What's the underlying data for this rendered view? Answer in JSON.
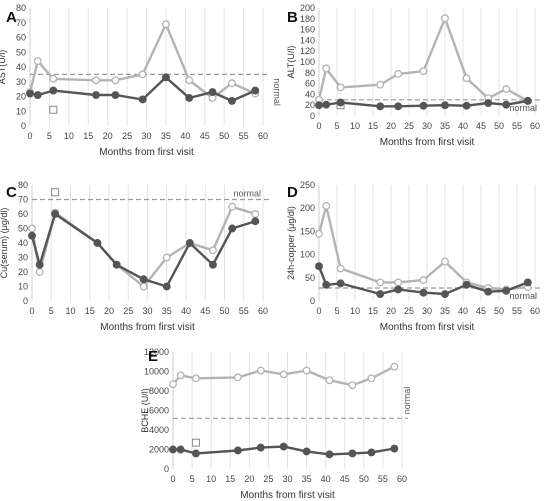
{
  "chart_data": [
    {
      "id": "A",
      "type": "line",
      "panel_label": "A",
      "xlabel": "Months from first visit",
      "ylabel": "AST(U/l)",
      "xlim": [
        0,
        60
      ],
      "ylim": [
        0,
        80
      ],
      "x_ticks": [
        0,
        5,
        10,
        15,
        20,
        25,
        30,
        35,
        40,
        45,
        50,
        55,
        60
      ],
      "y_ticks": [
        0,
        10,
        20,
        30,
        40,
        50,
        60,
        70,
        80
      ],
      "grid": "vertical",
      "reference_line": {
        "label": "normal",
        "y": 35
      },
      "square_marker": {
        "x": 6,
        "y": 11
      },
      "series": [
        {
          "style": "open-light",
          "color": "#b3b3b3",
          "x": [
            0,
            2,
            6,
            17,
            22,
            29,
            35,
            41,
            47,
            52,
            58
          ],
          "y": [
            23,
            44,
            32,
            31,
            31,
            35,
            69,
            31,
            19,
            29,
            22
          ]
        },
        {
          "style": "filled-dark",
          "color": "#555555",
          "x": [
            0,
            2,
            6,
            17,
            22,
            29,
            35,
            41,
            47,
            52,
            58
          ],
          "y": [
            22,
            21,
            24,
            21,
            21,
            18,
            33,
            19,
            23,
            17,
            24
          ]
        }
      ]
    },
    {
      "id": "B",
      "type": "line",
      "panel_label": "B",
      "xlabel": "Months from first visit",
      "ylabel": "ALT(U/l)",
      "xlim": [
        0,
        60
      ],
      "ylim": [
        0,
        200
      ],
      "x_ticks": [
        0,
        5,
        10,
        15,
        20,
        25,
        30,
        35,
        40,
        45,
        50,
        55,
        60
      ],
      "y_ticks": [
        0,
        20,
        40,
        60,
        80,
        100,
        120,
        140,
        160,
        180,
        200
      ],
      "grid": "vertical",
      "reference_line": {
        "label": "normal",
        "y": 30
      },
      "square_marker": {
        "x": 6,
        "y": 20
      },
      "series": [
        {
          "style": "open-light",
          "color": "#b3b3b3",
          "x": [
            0,
            2,
            6,
            17,
            22,
            29,
            35,
            41,
            47,
            52,
            58
          ],
          "y": [
            30,
            88,
            53,
            58,
            78,
            83,
            181,
            70,
            33,
            50,
            28
          ]
        },
        {
          "style": "filled-dark",
          "color": "#555555",
          "x": [
            0,
            2,
            6,
            17,
            22,
            29,
            35,
            41,
            47,
            52,
            58
          ],
          "y": [
            20,
            21,
            25,
            18,
            18,
            19,
            20,
            19,
            24,
            21,
            28
          ]
        }
      ]
    },
    {
      "id": "C",
      "type": "line",
      "panel_label": "C",
      "xlabel": "Months from first visit",
      "ylabel": "Cu(serum) (μg/dl)",
      "xlim": [
        0,
        60
      ],
      "ylim": [
        0,
        80
      ],
      "x_ticks": [
        0,
        5,
        10,
        15,
        20,
        25,
        30,
        35,
        40,
        45,
        50,
        55,
        60
      ],
      "y_ticks": [
        0,
        10,
        20,
        30,
        40,
        50,
        60,
        70,
        80
      ],
      "grid": "vertical",
      "reference_line": {
        "label": "normal",
        "y": 70
      },
      "square_marker": {
        "x": 6,
        "y": 75
      },
      "series": [
        {
          "style": "open-light",
          "color": "#b3b3b3",
          "x": [
            0,
            2,
            6,
            17,
            22,
            29,
            35,
            41,
            47,
            52,
            58
          ],
          "y": [
            50,
            20,
            61,
            40,
            25,
            10,
            30,
            40,
            35,
            65,
            60
          ]
        },
        {
          "style": "filled-dark",
          "color": "#555555",
          "x": [
            0,
            2,
            6,
            17,
            22,
            29,
            35,
            41,
            47,
            52,
            58
          ],
          "y": [
            45,
            25,
            60,
            40,
            25,
            15,
            10,
            40,
            25,
            50,
            55
          ]
        }
      ]
    },
    {
      "id": "D",
      "type": "line",
      "panel_label": "D",
      "xlabel": "Months from first visit",
      "ylabel": "24h-copper (μg/dl)",
      "xlim": [
        0,
        60
      ],
      "ylim": [
        0,
        250
      ],
      "x_ticks": [
        0,
        5,
        10,
        15,
        20,
        25,
        30,
        35,
        40,
        45,
        50,
        55,
        60
      ],
      "y_ticks": [
        0,
        50,
        100,
        150,
        200,
        250
      ],
      "grid": "vertical",
      "reference_line": {
        "label": "normal",
        "y": 28
      },
      "series": [
        {
          "style": "open-light",
          "color": "#b3b3b3",
          "x": [
            0,
            2,
            6,
            17,
            22,
            29,
            35,
            41,
            47,
            52,
            58
          ],
          "y": [
            145,
            205,
            70,
            40,
            40,
            45,
            85,
            40,
            28,
            25,
            30
          ]
        },
        {
          "style": "filled-dark",
          "color": "#555555",
          "x": [
            0,
            2,
            6,
            17,
            22,
            29,
            35,
            41,
            47,
            52,
            58
          ],
          "y": [
            75,
            35,
            38,
            15,
            25,
            18,
            15,
            35,
            20,
            22,
            40
          ]
        }
      ]
    },
    {
      "id": "E",
      "type": "line",
      "panel_label": "E",
      "xlabel": "Months from first visit",
      "ylabel": "BCHE (U/l)",
      "xlim": [
        0,
        60
      ],
      "ylim": [
        0,
        12000
      ],
      "x_ticks": [
        0,
        5,
        10,
        15,
        20,
        25,
        30,
        35,
        40,
        45,
        50,
        55,
        60
      ],
      "y_ticks": [
        0,
        2000,
        4000,
        6000,
        8000,
        10000,
        12000
      ],
      "grid": "vertical",
      "reference_line": {
        "label": "normal",
        "y": 5200
      },
      "square_marker": {
        "x": 6,
        "y": 2700
      },
      "series": [
        {
          "style": "open-light",
          "color": "#b3b3b3",
          "x": [
            0,
            2,
            6,
            17,
            23,
            29,
            35,
            41,
            47,
            52,
            58
          ],
          "y": [
            8700,
            9600,
            9300,
            9400,
            10100,
            9700,
            10100,
            9100,
            8600,
            9300,
            10500
          ]
        },
        {
          "style": "filled-dark",
          "color": "#555555",
          "x": [
            0,
            2,
            6,
            17,
            23,
            29,
            35,
            41,
            47,
            52,
            58
          ],
          "y": [
            2000,
            2000,
            1600,
            1900,
            2200,
            2300,
            1800,
            1500,
            1600,
            1700,
            2100
          ]
        }
      ]
    }
  ]
}
